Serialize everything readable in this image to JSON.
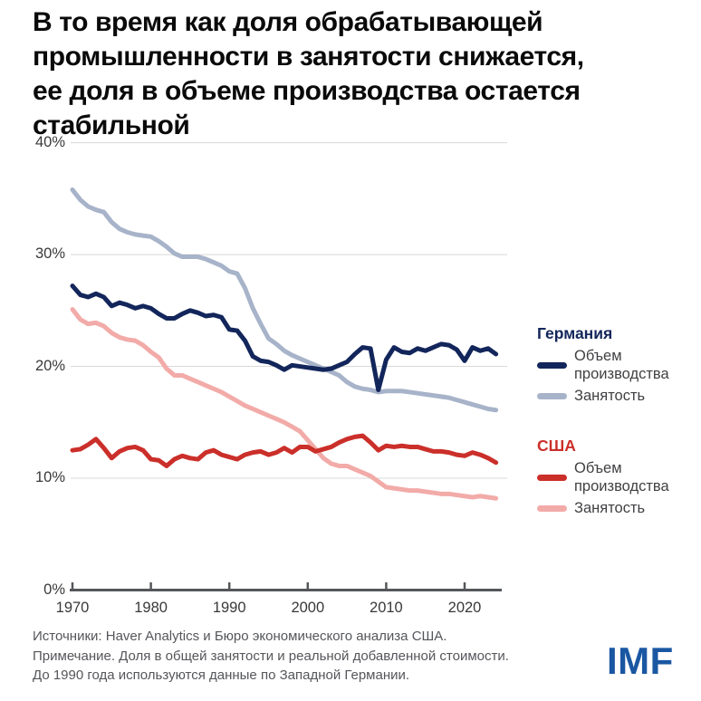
{
  "title": "В то время как доля обрабатывающей\nпромышленности в занятости снижается,\nее доля в объеме производства остается\nстабильной",
  "chart_data": {
    "type": "line",
    "x_start": 1970,
    "x_end": 2024,
    "x_ticks": [
      1970,
      1980,
      1990,
      2000,
      2010,
      2020
    ],
    "y_ticks": [
      {
        "value": 0,
        "label": "0%"
      },
      {
        "value": 10,
        "label": "10%"
      },
      {
        "value": 20,
        "label": "20%"
      },
      {
        "value": 30,
        "label": "30%"
      },
      {
        "value": 40,
        "label": "40%"
      }
    ],
    "ylim": [
      0,
      40
    ],
    "grid": "horizontal",
    "legend_position": "right",
    "series": [
      {
        "id": "germany-output",
        "name": "Германия — Объем производства",
        "color": "#13265B",
        "values": [
          27.2,
          26.4,
          26.2,
          26.5,
          26.2,
          25.4,
          25.7,
          25.5,
          25.2,
          25.4,
          25.2,
          24.7,
          24.3,
          24.3,
          24.7,
          25.0,
          24.8,
          24.5,
          24.6,
          24.4,
          23.3,
          23.2,
          22.3,
          20.9,
          20.5,
          20.4,
          20.1,
          19.7,
          20.1,
          20.0,
          19.9,
          19.8,
          19.7,
          19.8,
          20.1,
          20.4,
          21.1,
          21.7,
          21.6,
          17.9,
          20.6,
          21.7,
          21.3,
          21.2,
          21.6,
          21.4,
          21.7,
          22.0,
          21.9,
          21.5,
          20.5,
          21.7,
          21.4,
          21.6,
          21.1
        ]
      },
      {
        "id": "germany-employment",
        "name": "Германия — Занятость",
        "color": "#A7B3C9",
        "values": [
          35.8,
          34.9,
          34.3,
          34.0,
          33.8,
          32.9,
          32.3,
          32.0,
          31.8,
          31.7,
          31.6,
          31.2,
          30.7,
          30.1,
          29.8,
          29.8,
          29.8,
          29.6,
          29.3,
          29.0,
          28.5,
          28.3,
          27.0,
          25.2,
          23.8,
          22.5,
          22.0,
          21.4,
          21.0,
          20.7,
          20.4,
          20.1,
          19.8,
          19.5,
          19.2,
          18.6,
          18.2,
          18.0,
          17.9,
          17.7,
          17.8,
          17.8,
          17.8,
          17.7,
          17.6,
          17.5,
          17.4,
          17.3,
          17.2,
          17.0,
          16.8,
          16.6,
          16.4,
          16.2,
          16.1
        ]
      },
      {
        "id": "usa-output",
        "name": "США — Объем производства",
        "color": "#CB2F2A",
        "values": [
          12.5,
          12.6,
          13.0,
          13.5,
          12.7,
          11.8,
          12.4,
          12.7,
          12.8,
          12.5,
          11.7,
          11.6,
          11.1,
          11.7,
          12.0,
          11.8,
          11.7,
          12.3,
          12.5,
          12.1,
          11.9,
          11.7,
          12.1,
          12.3,
          12.4,
          12.1,
          12.3,
          12.7,
          12.3,
          12.8,
          12.8,
          12.4,
          12.6,
          12.8,
          13.2,
          13.5,
          13.7,
          13.8,
          13.2,
          12.5,
          12.9,
          12.8,
          12.9,
          12.8,
          12.8,
          12.6,
          12.4,
          12.4,
          12.3,
          12.1,
          12.0,
          12.3,
          12.1,
          11.8,
          11.4
        ]
      },
      {
        "id": "usa-employment",
        "name": "США — Занятость",
        "color": "#F2ABA8",
        "values": [
          25.1,
          24.2,
          23.8,
          23.9,
          23.6,
          23.0,
          22.6,
          22.4,
          22.3,
          21.9,
          21.3,
          20.8,
          19.8,
          19.2,
          19.2,
          18.9,
          18.6,
          18.3,
          18.0,
          17.7,
          17.3,
          16.9,
          16.5,
          16.2,
          15.9,
          15.6,
          15.3,
          15.0,
          14.6,
          14.2,
          13.4,
          12.6,
          11.8,
          11.3,
          11.1,
          11.1,
          10.8,
          10.5,
          10.2,
          9.7,
          9.2,
          9.1,
          9.0,
          8.9,
          8.9,
          8.8,
          8.7,
          8.6,
          8.6,
          8.5,
          8.4,
          8.3,
          8.4,
          8.3,
          8.2
        ]
      }
    ]
  },
  "legend": {
    "germany": {
      "header": "Германия",
      "items": [
        {
          "label": "Объем производства"
        },
        {
          "label": "Занятость"
        }
      ]
    },
    "usa": {
      "header": "США",
      "items": [
        {
          "label": "Объем производства"
        },
        {
          "label": "Занятость"
        }
      ]
    }
  },
  "footer": {
    "source_lines": [
      "Источники: Haver Analytics и Бюро экономического анализа США.",
      "Примечание. Доля в общей занятости и реальной добавленной стоимости.",
      "До 1990 года используются данные по Западной Германии."
    ],
    "logo": "IMF"
  },
  "colors": {
    "germany_output": "#13265B",
    "germany_employment": "#A7B3C9",
    "usa_output": "#CB2F2A",
    "usa_employment": "#F2ABA8",
    "gridline": "#D8D8D8",
    "axis": "#54565A",
    "axis_text": "#39393b",
    "title_text": "#0a0a0a",
    "note_text": "#55565a",
    "imf_logo": "#1a57a2"
  }
}
